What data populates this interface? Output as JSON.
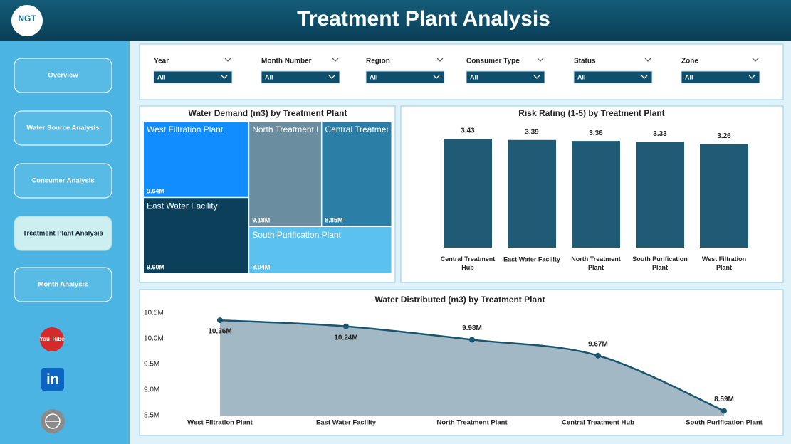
{
  "header": {
    "logo": "NGT",
    "title": "Treatment Plant Analysis"
  },
  "nav": [
    {
      "label": "Overview",
      "active": false
    },
    {
      "label": "Water Source Analysis",
      "active": false
    },
    {
      "label": "Consumer Analysis",
      "active": false
    },
    {
      "label": "Treatment Plant Analysis",
      "active": true
    },
    {
      "label": "Month Analysis",
      "active": false
    }
  ],
  "social": {
    "youtube": "You Tube",
    "linkedin": "in"
  },
  "filters": [
    {
      "label": "Year",
      "value": "All"
    },
    {
      "label": "Month Number",
      "value": "All"
    },
    {
      "label": "Region",
      "value": "All"
    },
    {
      "label": "Consumer Type",
      "value": "All"
    },
    {
      "label": "Status",
      "value": "All"
    },
    {
      "label": "Zone",
      "value": "All"
    }
  ],
  "chart_data": [
    {
      "type": "treemap",
      "title": "Water Demand (m3) by Treatment Plant",
      "categories": [
        "West Filtration Plant",
        "East Water Facility",
        "North Treatment Plant",
        "Central Treatment Hub",
        "South Purification Plant"
      ],
      "values": [
        9640000,
        9600000,
        9180000,
        8850000,
        8040000
      ],
      "value_labels": [
        "9.64M",
        "9.60M",
        "9.18M",
        "8.85M",
        "8.04M"
      ],
      "colors": [
        "#118dff",
        "#0c3f5a",
        "#6b8da0",
        "#2b7ea6",
        "#5bc2ef"
      ]
    },
    {
      "type": "bar",
      "title": "Risk Rating (1-5) by Treatment Plant",
      "categories": [
        "Central Treatment Hub",
        "East Water Facility",
        "North Treatment Plant",
        "South Purification Plant",
        "West Filtration Plant"
      ],
      "values": [
        3.43,
        3.39,
        3.36,
        3.33,
        3.26
      ],
      "color": "#1f5b74"
    },
    {
      "type": "area",
      "title": "Water Distributed (m3) by Treatment Plant",
      "categories": [
        "West Filtration Plant",
        "East Water Facility",
        "North Treatment Plant",
        "Central Treatment Hub",
        "South Purification Plant"
      ],
      "values": [
        10360000,
        10240000,
        9980000,
        9670000,
        8590000
      ],
      "value_labels": [
        "10.36M",
        "10.24M",
        "9.98M",
        "9.67M",
        "8.59M"
      ],
      "ylim": [
        8500000,
        10500000
      ],
      "yticks": [
        {
          "value": 8500000,
          "label": "8.5M"
        },
        {
          "value": 9000000,
          "label": "9.0M"
        },
        {
          "value": 9500000,
          "label": "9.5M"
        },
        {
          "value": 10000000,
          "label": "10.0M"
        },
        {
          "value": 10500000,
          "label": "10.5M"
        }
      ],
      "color": "#1a5570",
      "fill": "#a2b9c5"
    }
  ]
}
